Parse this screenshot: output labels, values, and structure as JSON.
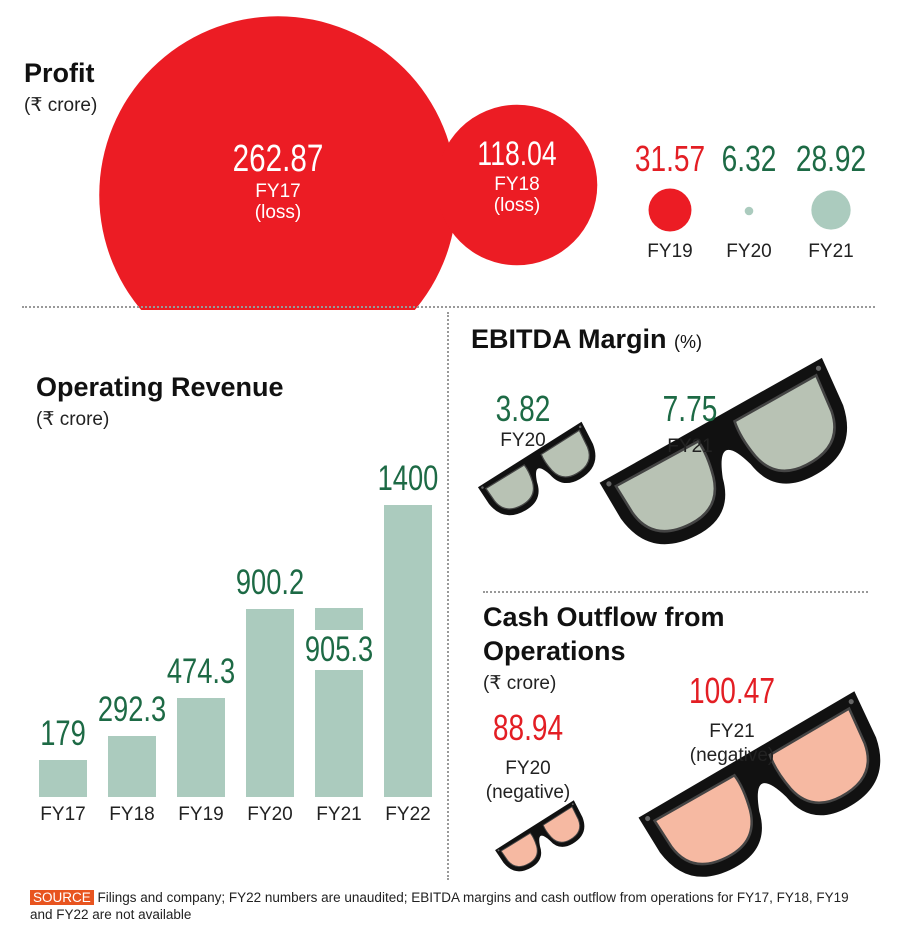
{
  "chart_data": [
    {
      "type": "bubble",
      "title": "Profit",
      "unit": "(₹ crore)",
      "categories": [
        "FY17",
        "FY18",
        "FY19",
        "FY20",
        "FY21"
      ],
      "values": [
        262.87,
        118.04,
        31.57,
        6.32,
        28.92
      ],
      "notes": [
        "(loss)",
        "(loss)",
        "",
        "",
        ""
      ],
      "colors": [
        "#ec1c24",
        "#ec1c24",
        "#ec1c24",
        "#abcbbe",
        "#abcbbe"
      ],
      "value_colors": [
        "#ffffff",
        "#ffffff",
        "#e31e24",
        "#1d6a45",
        "#1d6a45"
      ]
    },
    {
      "type": "bar",
      "title": "Operating Revenue",
      "unit": "(₹ crore)",
      "categories": [
        "FY17",
        "FY18",
        "FY19",
        "FY20",
        "FY21",
        "FY22"
      ],
      "values": [
        179,
        292.3,
        474.3,
        900.2,
        905.3,
        1400
      ],
      "labels": [
        "179",
        "292.3",
        "474.3",
        "900.2",
        "905.3",
        "1400"
      ],
      "ylim": [
        0,
        1400
      ],
      "color": "#abcbbe"
    },
    {
      "type": "pictogram",
      "title": "EBITDA Margin",
      "unit": "(%)",
      "categories": [
        "FY20",
        "FY21"
      ],
      "values": [
        3.82,
        7.75
      ],
      "labels": [
        "3.82",
        "7.75"
      ],
      "lens_color": "#b8c2b4"
    },
    {
      "type": "pictogram",
      "title": "Cash Outflow from Operations",
      "unit": "(₹ crore)",
      "categories": [
        "FY20",
        "FY21"
      ],
      "values": [
        88.94,
        100.47
      ],
      "labels": [
        "88.94",
        "100.47"
      ],
      "notes": [
        "(negative)",
        "(negative)"
      ],
      "lens_color": "#f6b9a2"
    }
  ],
  "source": {
    "tag": "SOURCE",
    "text": "Filings and company; FY22 numbers are unaudited; EBITDA margins and cash outflow from operations for FY17, FY18, FY19 and FY22 are not available"
  }
}
